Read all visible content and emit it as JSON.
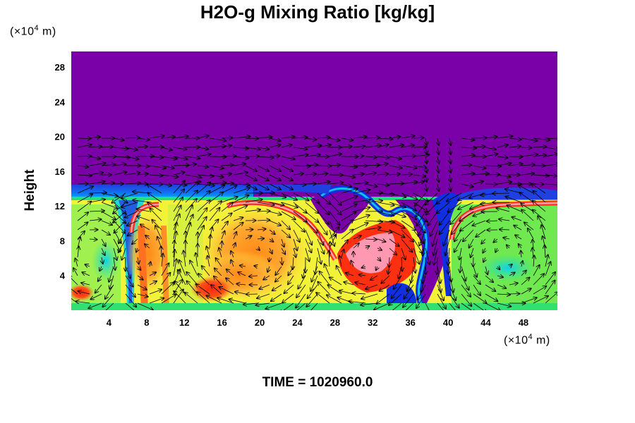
{
  "chart_data": {
    "type": "heatmap",
    "title": "H2O-g Mixing Ratio [kg/kg]",
    "ylabel": "Height",
    "xlabel": "",
    "x_unit": {
      "prefix": "(×10",
      "exp": "4",
      "suffix": " m)"
    },
    "y_unit": {
      "prefix": "(×10",
      "exp": "4",
      "suffix": " m)"
    },
    "x_ticks": [
      "4",
      "8",
      "12",
      "16",
      "20",
      "24",
      "28",
      "32",
      "36",
      "40",
      "44",
      "48"
    ],
    "y_ticks": [
      "4",
      "8",
      "12",
      "16",
      "20",
      "24",
      "28"
    ],
    "xlim": [
      0,
      51.6
    ],
    "ylim": [
      0,
      29.8
    ],
    "colormap": [
      "#7a00a8",
      "#1030e0",
      "#00c8ff",
      "#20e860",
      "#ffff30",
      "#ffa020",
      "#ff3010",
      "#ff9cb4"
    ],
    "background_color": "#7a00a8",
    "overlay": "wind vector arrows",
    "time_label": "TIME = 1020960.0"
  }
}
